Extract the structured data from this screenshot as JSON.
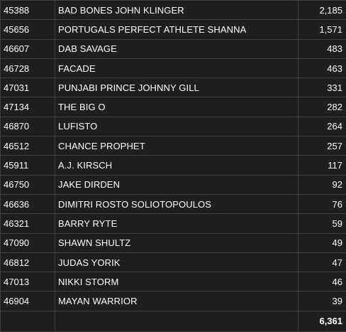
{
  "table": {
    "rows": [
      {
        "id": "45388",
        "name": "BAD BONES JOHN KLINGER",
        "value": "2,185"
      },
      {
        "id": "45656",
        "name": "PORTUGALS PERFECT ATHLETE SHANNA",
        "value": "1,571"
      },
      {
        "id": "46607",
        "name": "DAB SAVAGE",
        "value": "483"
      },
      {
        "id": "46728",
        "name": "FACADE",
        "value": "463"
      },
      {
        "id": "47031",
        "name": "PUNJABI PRINCE JOHNNY GILL",
        "value": "331"
      },
      {
        "id": "47134",
        "name": "THE BIG O",
        "value": "282"
      },
      {
        "id": "46870",
        "name": "LUFISTO",
        "value": "264"
      },
      {
        "id": "46512",
        "name": "CHANCE PROPHET",
        "value": "257"
      },
      {
        "id": "45911",
        "name": "A.J. KIRSCH",
        "value": "117"
      },
      {
        "id": "46750",
        "name": "JAKE DIRDEN",
        "value": "92"
      },
      {
        "id": "46636",
        "name": "DIMITRI ROSTO SOLIOTOPOULOS",
        "value": "76"
      },
      {
        "id": "46321",
        "name": "BARRY RYTE",
        "value": "59"
      },
      {
        "id": "47090",
        "name": "SHAWN SHULTZ",
        "value": "49"
      },
      {
        "id": "46812",
        "name": "JUDAS YORIK",
        "value": "47"
      },
      {
        "id": "47013",
        "name": "NIKKI STORM",
        "value": "46"
      },
      {
        "id": "46904",
        "name": "MAYAN WARRIOR",
        "value": "39"
      }
    ],
    "total": "6,361"
  }
}
